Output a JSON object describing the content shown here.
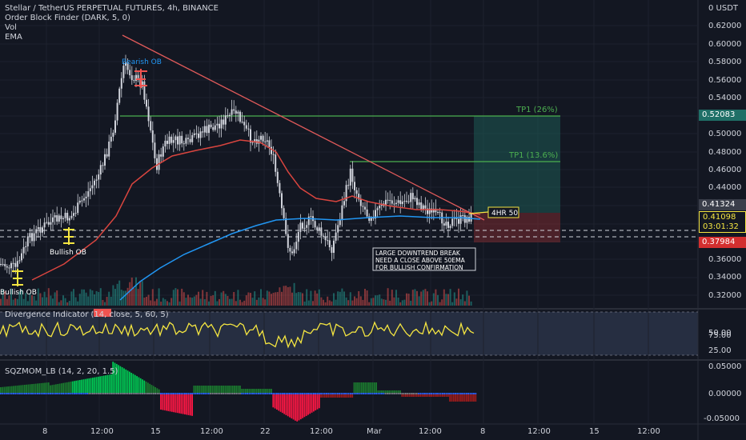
{
  "header": {
    "symbol_line": "Stellar / TetherUS PERPETUAL FUTURES, 4h, BINANCE",
    "study1": "Order Block Finder (DARK, 5, 0)",
    "study2": "Vol",
    "study3": "EMA"
  },
  "price_axis": {
    "unit_label": "0 USDT",
    "ticks": [
      "0.62000",
      "0.60000",
      "0.58000",
      "0.56000",
      "0.54000",
      "0.50000",
      "0.48000",
      "0.46000",
      "0.44000",
      "0.36000",
      "0.34000",
      "0.32000"
    ],
    "tags": {
      "tp_level": "0.52083",
      "current_top": "0.41324",
      "current_price": "0.41098",
      "countdown": "03:01:32",
      "stop_level": "0.37984"
    }
  },
  "time_axis": [
    "8",
    "12:00",
    "15",
    "12:00",
    "22",
    "12:00",
    "Mar",
    "12:00",
    "8",
    "12:00",
    "15",
    "12:00"
  ],
  "annotations": {
    "bearish_ob": "Bearish OB",
    "bullish_ob_1": "Bullish OB",
    "bullish_ob_2": "Bullish OB",
    "tp1_upper": "TP1 (26%)",
    "tp1_lower": "TP1 (13.6%)",
    "ema_note": "4HR 50",
    "note_lines": [
      "LARGE DOWNTREND BREAK",
      "NEED A CLOSE ABOVE 50EMA",
      "FOR BULLISH CONFIRMATION"
    ]
  },
  "divergence": {
    "title": "Divergence Indicator (14, close, 5, 60, 5)",
    "ticks": [
      "75.00",
      "50.00",
      "25.00"
    ]
  },
  "sqzmom": {
    "title": "SQZMOM_LB (14, 2, 20, 1.5)",
    "ticks": [
      "0.05000",
      "0.00000",
      "-0.05000"
    ]
  },
  "colors": {
    "background": "#131722",
    "up": "#26a69a",
    "down": "#ef5350",
    "trendline": "#e05a5a",
    "ema_short": "#d9453f",
    "ema_long": "#2196f3",
    "tp_line": "#4caf50",
    "rsi_line": "#f5e641",
    "tp_tag": "#1f6f67",
    "stop_tag": "#d32f2f"
  }
}
